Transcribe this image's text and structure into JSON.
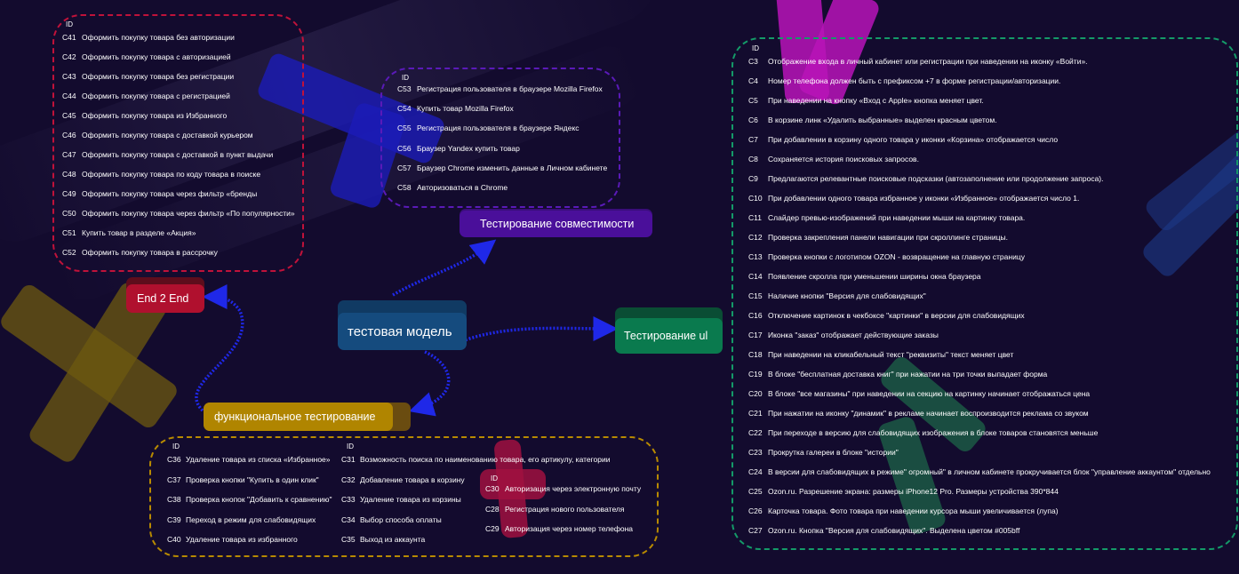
{
  "colors": {
    "background": "#130b2e",
    "e2e": "#b0102e",
    "compat": "#4a0f9a",
    "ui": "#0a7a4e",
    "functional": "#b08500",
    "center": "#154b7e",
    "arrow": "#1f28e8"
  },
  "center": {
    "label": "тестовая модель"
  },
  "e2e": {
    "label": "End 2 End",
    "id_header": "ID",
    "items": [
      {
        "code": "C41",
        "text": "Оформить покупку товара без авторизации"
      },
      {
        "code": "C42",
        "text": "Оформить покупку товара с авторизацией"
      },
      {
        "code": "C43",
        "text": "Оформить покупку товара без регистрации"
      },
      {
        "code": "C44",
        "text": "Оформить покупку товара с регистрацией"
      },
      {
        "code": "C45",
        "text": "Оформить покупку товара из Избранного"
      },
      {
        "code": "C46",
        "text": "Оформить покупку товара с доставкой курьером"
      },
      {
        "code": "C47",
        "text": "Оформить покупку товара с доставкой в пункт выдачи"
      },
      {
        "code": "C48",
        "text": "Оформить покупку товара по коду товара в поиске"
      },
      {
        "code": "C49",
        "text": "Оформить покупку товара через фильтр «бренды"
      },
      {
        "code": "C50",
        "text": "Оформить покупку товара через фильтр «По популярности»"
      },
      {
        "code": "C51",
        "text": "Купить товар в разделе «Акция»"
      },
      {
        "code": "C52",
        "text": "Оформить покупку товара в рассрочку"
      }
    ]
  },
  "compat": {
    "label": "Тестирование совместимости",
    "id_header": "ID",
    "items": [
      {
        "code": "C53",
        "text": "Регистрация пользователя в браузере Mozilla Firefox"
      },
      {
        "code": "C54",
        "text": "Купить товар Mozilla Firefox"
      },
      {
        "code": "C55",
        "text": "Регистрация пользователя в браузере Яндекс"
      },
      {
        "code": "C56",
        "text": "Браузер Yandex купить товар"
      },
      {
        "code": "C57",
        "text": "Браузер Chrome изменить данные в Личном кабинете"
      },
      {
        "code": "C58",
        "text": "Авторизоваться в Chrome"
      }
    ]
  },
  "ui": {
    "label": "Тестирование  ul",
    "id_header": "ID",
    "items": [
      {
        "code": "C3",
        "text": "Отображение входа в личный кабинет или регистрации при наведении на иконку «Войти»."
      },
      {
        "code": "C4",
        "text": "Номер телефона должен быть с префиксом +7 в форме регистрации/авторизации."
      },
      {
        "code": "C5",
        "text": "При наведении на кнопку «Вход с Apple» кнопка меняет цвет."
      },
      {
        "code": "C6",
        "text": "В корзине линк «Удалить выбранные» выделен красным цветом."
      },
      {
        "code": "C7",
        "text": "При добавлении в корзину одного товара у иконки «Корзина» отображается число"
      },
      {
        "code": "C8",
        "text": "Сохраняется история поисковых запросов."
      },
      {
        "code": "C9",
        "text": "Предлагаются релевантные поисковые подсказки (автозаполнение или продолжение запроса)."
      },
      {
        "code": "C10",
        "text": "При добавлении одного товара избранное у иконки «Избранное» отображается число 1."
      },
      {
        "code": "C11",
        "text": "Слайдер превью-изображений при наведении мыши на картинку товара."
      },
      {
        "code": "C12",
        "text": "Проверка закрепления панели навигации при скроллинге страницы."
      },
      {
        "code": "C13",
        "text": "Проверка кнопки с логотипом OZON - возвращение на главную страницу"
      },
      {
        "code": "C14",
        "text": "Появление скролла при уменьшении ширины окна браузера"
      },
      {
        "code": "C15",
        "text": "Наличие кнопки \"Версия для слабовидящих\""
      },
      {
        "code": "C16",
        "text": "Отключение картинок в чекбоксе \"картинки\" в версии для слабовидящих"
      },
      {
        "code": "C17",
        "text": "Иконка \"заказ\" отображает действующие заказы"
      },
      {
        "code": "C18",
        "text": "При наведении на кликабельный текст \"реквизиты\" текст меняет цвет"
      },
      {
        "code": "C19",
        "text": "В блоке \"бесплатная доставка книг\" при нажатии на три точки выпадает форма"
      },
      {
        "code": "C20",
        "text": "В блоке \"все магазины\" при наведении на секцию на картинку начинает отображаться цена"
      },
      {
        "code": "C21",
        "text": "При нажатии на иконку \"динамик\" в рекламе начинает воспроизводится реклама со звуком"
      },
      {
        "code": "C22",
        "text": "При переходе в версию для слабовидящих изображения в блоке товаров становятся меньше"
      },
      {
        "code": "C23",
        "text": "Прокрутка галереи в блоке \"истории\""
      },
      {
        "code": "C24",
        "text": "В версии для слабовидящих в режиме\" огромный\" в личном кабинете прокручивается блок \"управление аккаунтом\" отдельно"
      },
      {
        "code": "C25",
        "text": "Ozon.ru. Разрешение экрана: размеры iPhone12 Pro. Размеры устройства 390*844"
      },
      {
        "code": "C26",
        "text": "Карточка товара. Фото товара при наведении курсора мыши увеличивается (лупа)"
      },
      {
        "code": "C27",
        "text": "Ozon.ru. Кнопка \"Версия для слабовидящих\". Выделена цветом #005bff"
      }
    ]
  },
  "functional": {
    "label": "функциональное тестирование",
    "id_header": "ID",
    "col1": [
      {
        "code": "C36",
        "text": "Удаление товара из списка «Избранное»"
      },
      {
        "code": "C37",
        "text": "Проверка кнопки \"Купить в один клик\""
      },
      {
        "code": "C38",
        "text": "Проверка кнопок \"Добавить к сравнению\""
      },
      {
        "code": "C39",
        "text": "Переход в режим для слабовидящих"
      },
      {
        "code": "C40",
        "text": "Удаление товара из избранного"
      }
    ],
    "col2": [
      {
        "code": "C31",
        "text": "Возможность поиска по наименованию товара, его артикулу, категории"
      },
      {
        "code": "C32",
        "text": "Добавление товара в корзину"
      },
      {
        "code": "C33",
        "text": "Удаление товара из корзины"
      },
      {
        "code": "C34",
        "text": "Выбор способа оплаты"
      },
      {
        "code": "C35",
        "text": "Выход из аккаунта"
      }
    ],
    "col3": [
      {
        "code": "C30",
        "text": "Авторизация через электронную почту"
      },
      {
        "code": "C28",
        "text": "Регистрация нового пользователя"
      },
      {
        "code": "C29",
        "text": "Авторизация через номер телефона"
      }
    ]
  }
}
